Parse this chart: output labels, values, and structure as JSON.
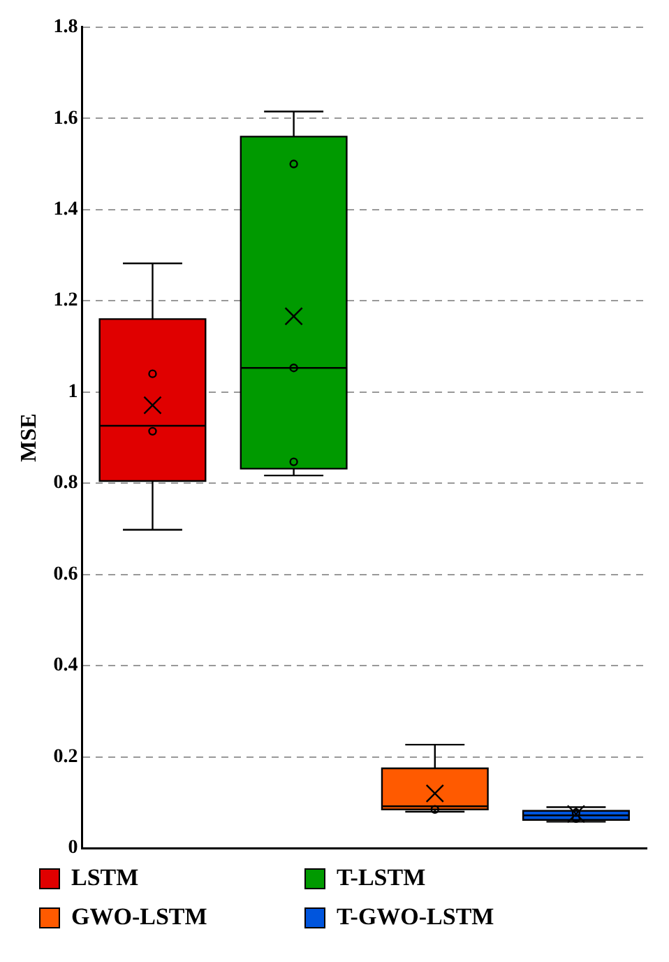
{
  "chart_data": {
    "type": "box",
    "ylabel": "MSE",
    "categories": [
      null,
      null,
      null,
      null
    ],
    "series": [
      {
        "name": "LSTM",
        "color": "#e00000",
        "boxes": [
          {
            "low": 0.698,
            "q1": 0.805,
            "median": 0.926,
            "q3": 1.16,
            "high": 1.282,
            "mean": 0.971,
            "outliers": [
              1.04,
              0.914
            ]
          },
          null,
          null,
          null
        ]
      },
      {
        "name": "T-LSTM",
        "color": "#009a00",
        "boxes": [
          null,
          {
            "low": 0.817,
            "q1": 0.832,
            "median": 1.053,
            "q3": 1.56,
            "high": 1.615,
            "mean": 1.166,
            "outliers": [
              1.5,
              1.053,
              0.847
            ]
          },
          null,
          null
        ]
      },
      {
        "name": "GWO-LSTM",
        "color": "#ff5a00",
        "boxes": [
          null,
          null,
          {
            "low": 0.08,
            "q1": 0.085,
            "median": 0.092,
            "q3": 0.175,
            "high": 0.227,
            "mean": 0.12,
            "outliers": [
              0.085
            ]
          },
          null
        ]
      },
      {
        "name": "T-GWO-LSTM",
        "color": "#0055dd",
        "boxes": [
          null,
          null,
          null,
          {
            "low": 0.058,
            "q1": 0.062,
            "median": 0.072,
            "q3": 0.082,
            "high": 0.09,
            "mean": 0.075,
            "outliers": [
              0.065,
              0.078
            ]
          }
        ]
      }
    ],
    "ylim": [
      0,
      1.8
    ],
    "yticks": [
      0,
      0.2,
      0.4,
      0.6,
      0.8,
      1,
      1.2,
      1.4,
      1.6,
      1.8
    ],
    "grid": "y",
    "legend": "bottom",
    "tick_labels": "y"
  }
}
